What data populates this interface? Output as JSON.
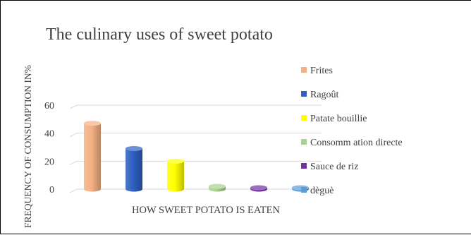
{
  "chart_data": {
    "type": "bar",
    "style": "3d-cylinder",
    "title": "The culinary  uses of sweet potato",
    "ylabel": "FREQUENCY OF CONSUMPTION IN%",
    "xlabel": "HOW SWEET POTATO IS EATEN",
    "ylim": [
      0,
      60
    ],
    "yticks": [
      "0",
      "20",
      "40",
      "60"
    ],
    "grid": true,
    "legend_position": "right",
    "series": [
      {
        "name": "Frites",
        "value": 47,
        "color": "#F4B183"
      },
      {
        "name": "Ragoût",
        "value": 29,
        "color": "#2E5FC1"
      },
      {
        "name": "Patate bouillie",
        "value": 20,
        "color": "#FFFF00"
      },
      {
        "name": "Consomm ation directe",
        "value": 2,
        "color": "#A9D18E"
      },
      {
        "name": "Sauce de riz",
        "value": 1,
        "color": "#7030A0"
      },
      {
        "name": "dèguè",
        "value": 1,
        "color": "#5B9BD5"
      }
    ]
  }
}
